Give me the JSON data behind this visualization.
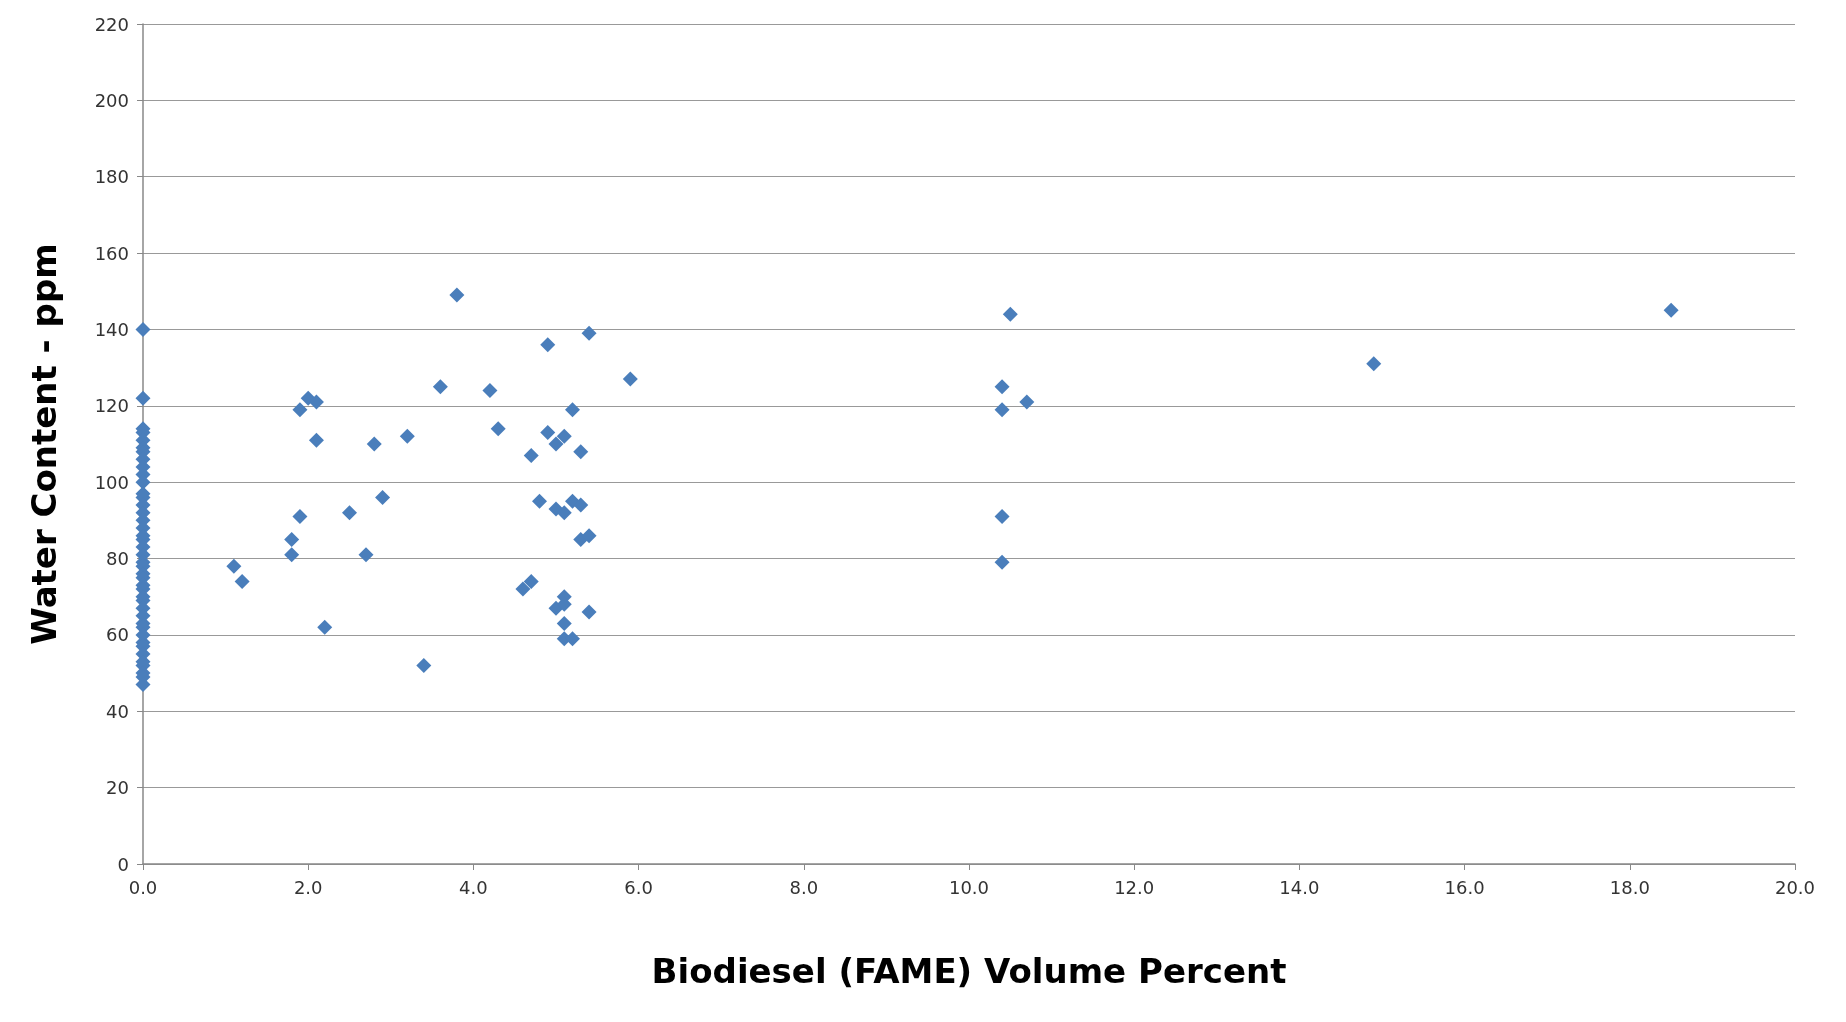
{
  "chart_data": {
    "type": "scatter",
    "xlabel": "Biodiesel (FAME) Volume Percent",
    "ylabel": "Water Content - ppm",
    "marker": "diamond",
    "grid": "y",
    "xlim": [
      0,
      20
    ],
    "xticks": [
      {
        "value": 0,
        "label": "0.0"
      },
      {
        "value": 2,
        "label": "2.0"
      },
      {
        "value": 4,
        "label": "4.0"
      },
      {
        "value": 6,
        "label": "6.0"
      },
      {
        "value": 8,
        "label": "8.0"
      },
      {
        "value": 10,
        "label": "10.0"
      },
      {
        "value": 12,
        "label": "12.0"
      },
      {
        "value": 14,
        "label": "14.0"
      },
      {
        "value": 16,
        "label": "16.0"
      },
      {
        "value": 18,
        "label": "18.0"
      },
      {
        "value": 20,
        "label": "20.0"
      }
    ],
    "ylim": [
      0,
      220
    ],
    "yticks": [
      0,
      20,
      40,
      60,
      80,
      100,
      120,
      140,
      160,
      180,
      200,
      220
    ],
    "series": [
      {
        "color": "#4a7ebb",
        "x": [
          0,
          0,
          0,
          0,
          0,
          0,
          0,
          0,
          0,
          0,
          0,
          0,
          0,
          0,
          0,
          0,
          0,
          0,
          0,
          0,
          0,
          0,
          0,
          0,
          0,
          0,
          0,
          0,
          0,
          0,
          0,
          0,
          0,
          0,
          0,
          0,
          0,
          0,
          0,
          0,
          0,
          0,
          1.1,
          1.2,
          1.8,
          1.8,
          1.9,
          1.9,
          2.0,
          2.1,
          2.1,
          2.2,
          2.5,
          2.7,
          2.8,
          2.9,
          3.2,
          3.4,
          3.6,
          3.8,
          4.2,
          4.3,
          4.6,
          4.7,
          4.7,
          4.8,
          4.9,
          4.9,
          5.0,
          5.0,
          5.0,
          5.1,
          5.1,
          5.1,
          5.1,
          5.1,
          5.1,
          5.2,
          5.2,
          5.2,
          5.3,
          5.3,
          5.3,
          5.4,
          5.4,
          5.4,
          5.9,
          10.4,
          10.4,
          10.4,
          10.4,
          10.5,
          10.7,
          14.9,
          18.5
        ],
        "values": [
          140,
          122,
          114,
          113,
          111,
          109,
          108,
          106,
          104,
          102,
          100,
          97,
          96,
          94,
          92,
          90,
          88,
          86,
          85,
          83,
          81,
          79,
          78,
          76,
          75,
          73,
          72,
          70,
          69,
          67,
          65,
          63,
          62,
          60,
          58,
          57,
          55,
          53,
          52,
          50,
          49,
          47,
          78,
          74,
          85,
          81,
          119,
          91,
          122,
          121,
          111,
          62,
          92,
          81,
          110,
          96,
          112,
          52,
          125,
          149,
          124,
          114,
          72,
          74,
          107,
          95,
          136,
          113,
          110,
          93,
          67,
          112,
          92,
          70,
          68,
          63,
          59,
          119,
          95,
          59,
          108,
          94,
          85,
          139,
          86,
          66,
          127,
          125,
          119,
          91,
          79,
          144,
          121,
          131,
          145
        ]
      }
    ]
  }
}
